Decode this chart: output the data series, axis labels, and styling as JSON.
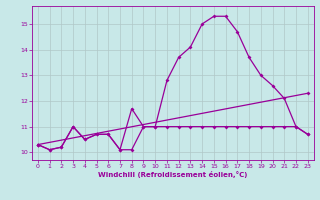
{
  "bg_color": "#c8e8e8",
  "line_color": "#990099",
  "grid_color": "#b0c8c8",
  "xlabel": "Windchill (Refroidissement éolien,°C)",
  "xlim": [
    -0.5,
    23.5
  ],
  "ylim": [
    9.7,
    15.7
  ],
  "yticks": [
    10,
    11,
    12,
    13,
    14,
    15
  ],
  "xticks": [
    0,
    1,
    2,
    3,
    4,
    5,
    6,
    7,
    8,
    9,
    10,
    11,
    12,
    13,
    14,
    15,
    16,
    17,
    18,
    19,
    20,
    21,
    22,
    23
  ],
  "line1_x": [
    0,
    1,
    2,
    3,
    4,
    5,
    6,
    7,
    8,
    9,
    10,
    11,
    12,
    13,
    14,
    15,
    16,
    17,
    18,
    19,
    20,
    21,
    22,
    23
  ],
  "line1_y": [
    10.3,
    10.1,
    10.2,
    11.0,
    10.5,
    10.7,
    10.7,
    10.1,
    11.7,
    11.0,
    11.0,
    12.8,
    13.7,
    14.1,
    15.0,
    15.3,
    15.3,
    14.7,
    13.7,
    13.0,
    12.6,
    12.1,
    11.0,
    10.7
  ],
  "line2_x": [
    0,
    1,
    2,
    3,
    4,
    5,
    6,
    7,
    8,
    9,
    10,
    11,
    12,
    13,
    14,
    15,
    16,
    17,
    18,
    19,
    20,
    21,
    22,
    23
  ],
  "line2_y": [
    10.3,
    10.1,
    10.2,
    11.0,
    10.5,
    10.7,
    10.7,
    10.1,
    10.1,
    11.0,
    11.0,
    11.0,
    11.0,
    11.0,
    11.0,
    11.0,
    11.0,
    11.0,
    11.0,
    11.0,
    11.0,
    11.0,
    11.0,
    10.7
  ],
  "line3_x": [
    0,
    23
  ],
  "line3_y": [
    10.3,
    12.3
  ]
}
